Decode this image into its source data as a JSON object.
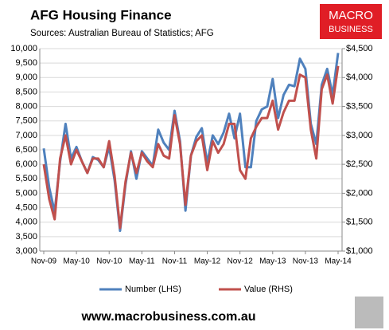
{
  "chart_data": {
    "type": "line",
    "title": "AFG Housing Finance",
    "subtitle": "Sources: Australian Bureau of Statistics; AFG",
    "categories": [
      "Nov-09",
      null,
      null,
      null,
      null,
      null,
      "May-10",
      null,
      null,
      null,
      null,
      null,
      "Nov-10",
      null,
      null,
      null,
      null,
      null,
      "May-11",
      null,
      null,
      null,
      null,
      null,
      "Nov-11",
      null,
      null,
      null,
      null,
      null,
      "May-12",
      null,
      null,
      null,
      null,
      null,
      "Nov-12",
      null,
      null,
      null,
      null,
      null,
      "May-13",
      null,
      null,
      null,
      null,
      null,
      "Nov-13",
      null,
      null,
      null,
      null,
      null,
      "May-14"
    ],
    "series": [
      {
        "name": "Number (LHS)",
        "color": "#4f81bd",
        "axis": "y",
        "values": [
          6550,
          5200,
          4350,
          6100,
          7400,
          6200,
          6600,
          6100,
          5700,
          6250,
          6150,
          5900,
          6600,
          5450,
          3700,
          5300,
          6450,
          5500,
          6450,
          6200,
          5950,
          7200,
          6750,
          6500,
          7850,
          6800,
          4400,
          6300,
          6950,
          7250,
          6050,
          7000,
          6700,
          7100,
          7750,
          6900,
          7750,
          5900,
          5900,
          7500,
          7900,
          8000,
          8950,
          7600,
          8400,
          8750,
          8700,
          9650,
          9300,
          7400,
          6700,
          8750,
          9300,
          8400,
          9850
        ]
      },
      {
        "name": "Value (RHS)",
        "color": "#c0504d",
        "axis": "y2",
        "values": [
          2500,
          1900,
          1550,
          2600,
          3000,
          2500,
          2750,
          2550,
          2350,
          2600,
          2600,
          2450,
          2900,
          2300,
          1400,
          2200,
          2700,
          2350,
          2700,
          2550,
          2450,
          2850,
          2650,
          2600,
          3350,
          2850,
          1800,
          2650,
          2900,
          3000,
          2400,
          2900,
          2700,
          2850,
          3200,
          3200,
          2400,
          2250,
          2950,
          3150,
          3300,
          3300,
          3600,
          3100,
          3400,
          3600,
          3600,
          4050,
          4000,
          3100,
          2600,
          3800,
          4050,
          3550,
          4200
        ]
      }
    ],
    "ylim": [
      3000,
      10000
    ],
    "yticks": [
      {
        "value": 3000,
        "label": "3,000"
      },
      {
        "value": 3500,
        "label": "3,500"
      },
      {
        "value": 4000,
        "label": "4,000"
      },
      {
        "value": 4500,
        "label": "4,500"
      },
      {
        "value": 5000,
        "label": "5,000"
      },
      {
        "value": 5500,
        "label": "5,500"
      },
      {
        "value": 6000,
        "label": "6,000"
      },
      {
        "value": 6500,
        "label": "6,500"
      },
      {
        "value": 7000,
        "label": "7,000"
      },
      {
        "value": 7500,
        "label": "7,500"
      },
      {
        "value": 8000,
        "label": "8,000"
      },
      {
        "value": 8500,
        "label": "8,500"
      },
      {
        "value": 9000,
        "label": "9,000"
      },
      {
        "value": 9500,
        "label": "9,500"
      },
      {
        "value": 10000,
        "label": "10,000"
      }
    ],
    "y2lim": [
      1000,
      4500
    ],
    "y2ticks": [
      {
        "value": 1000,
        "label": "$1,000"
      },
      {
        "value": 1500,
        "label": "$1,500"
      },
      {
        "value": 2000,
        "label": "$2,000"
      },
      {
        "value": 2500,
        "label": "$2,500"
      },
      {
        "value": 3000,
        "label": "$3,000"
      },
      {
        "value": 3500,
        "label": "$3,500"
      },
      {
        "value": 4000,
        "label": "$4,000"
      },
      {
        "value": 4500,
        "label": "$4,500"
      }
    ],
    "grid": true,
    "legend": "bottom"
  },
  "logo": {
    "line1": "MACRO",
    "line2": "BUSINESS"
  },
  "footer": "www.macrobusiness.com.au"
}
